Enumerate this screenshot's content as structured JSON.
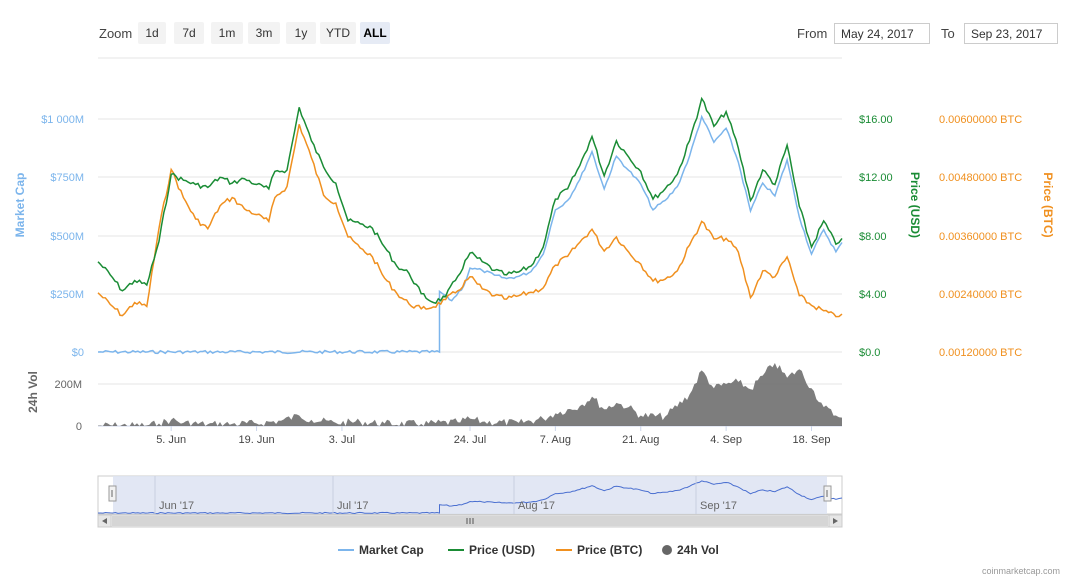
{
  "toolbar": {
    "zoom_label": "Zoom",
    "zoom_buttons": [
      "1d",
      "7d",
      "1m",
      "3m",
      "1y",
      "YTD",
      "ALL"
    ],
    "active_zoom": "ALL",
    "from_label": "From",
    "from_value": "May 24, 2017",
    "to_label": "To",
    "to_value": "Sep 23, 2017"
  },
  "legend": {
    "items": [
      {
        "label": "Market Cap",
        "color": "#7cb5ec"
      },
      {
        "label": "Price (USD)",
        "color": "#1a8c35"
      },
      {
        "label": "Price (BTC)",
        "color": "#f0901f"
      },
      {
        "label": "24h Vol",
        "color": "#666666"
      }
    ]
  },
  "navigator": {
    "labels": [
      "Jun '17",
      "Jul '17",
      "Aug '17",
      "Sep '17"
    ]
  },
  "watermark": "coinmarketcap.com",
  "chart_data": {
    "type": "line",
    "x_start": "2017-05-24",
    "x_end": "2017-09-23",
    "x_tick_labels": [
      "5. Jun",
      "19. Jun",
      "3. Jul",
      "24. Jul",
      "7. Aug",
      "21. Aug",
      "4. Sep",
      "18. Sep"
    ],
    "x_tick_dates": [
      "2017-06-05",
      "2017-06-19",
      "2017-07-03",
      "2017-07-24",
      "2017-08-07",
      "2017-08-21",
      "2017-09-04",
      "2017-09-18"
    ],
    "axes": {
      "market_cap": {
        "label": "Market Cap",
        "ticks": [
          "$0",
          "$250M",
          "$500M",
          "$750M",
          "$1 000M"
        ],
        "range": [
          0,
          1000
        ],
        "unit": "M USD",
        "color": "#7cb5ec"
      },
      "price_usd": {
        "label": "Price (USD)",
        "ticks": [
          "$0.0",
          "$4.00",
          "$8.00",
          "$12.00",
          "$16.00"
        ],
        "range": [
          0,
          16
        ],
        "color": "#1a8c35"
      },
      "price_btc": {
        "label": "Price (BTC)",
        "ticks": [
          "0.00120000 BTC",
          "0.00240000 BTC",
          "0.00360000 BTC",
          "0.00480000 BTC",
          "0.00600000 BTC"
        ],
        "range": [
          0.0012,
          0.006
        ],
        "color": "#f0901f"
      },
      "volume": {
        "label": "24h Vol",
        "ticks": [
          "0",
          "200M"
        ],
        "range": [
          0,
          200
        ],
        "unit": "M USD",
        "color": "#666666"
      }
    },
    "series": [
      {
        "name": "Price (USD)",
        "axis": "price_usd",
        "points": [
          [
            "2017-05-24",
            6.2
          ],
          [
            "2017-05-26",
            5.3
          ],
          [
            "2017-05-28",
            4.2
          ],
          [
            "2017-05-30",
            4.9
          ],
          [
            "2017-06-01",
            4.6
          ],
          [
            "2017-06-03",
            7.6
          ],
          [
            "2017-06-05",
            12.2
          ],
          [
            "2017-06-07",
            11.8
          ],
          [
            "2017-06-09",
            11.5
          ],
          [
            "2017-06-11",
            11.3
          ],
          [
            "2017-06-13",
            12.0
          ],
          [
            "2017-06-15",
            11.6
          ],
          [
            "2017-06-17",
            11.9
          ],
          [
            "2017-06-19",
            11.5
          ],
          [
            "2017-06-21",
            11.2
          ],
          [
            "2017-06-22",
            12.4
          ],
          [
            "2017-06-24",
            12.5
          ],
          [
            "2017-06-26",
            16.8
          ],
          [
            "2017-06-28",
            14.5
          ],
          [
            "2017-06-30",
            12.7
          ],
          [
            "2017-07-02",
            11.6
          ],
          [
            "2017-07-04",
            9.0
          ],
          [
            "2017-07-06",
            8.8
          ],
          [
            "2017-07-08",
            8.5
          ],
          [
            "2017-07-10",
            7.2
          ],
          [
            "2017-07-12",
            5.9
          ],
          [
            "2017-07-14",
            5.4
          ],
          [
            "2017-07-16",
            4.0
          ],
          [
            "2017-07-18",
            3.4
          ],
          [
            "2017-07-20",
            3.8
          ],
          [
            "2017-07-22",
            5.2
          ],
          [
            "2017-07-24",
            6.8
          ],
          [
            "2017-07-26",
            6.2
          ],
          [
            "2017-07-28",
            5.6
          ],
          [
            "2017-07-30",
            5.3
          ],
          [
            "2017-08-01",
            5.5
          ],
          [
            "2017-08-03",
            5.9
          ],
          [
            "2017-08-05",
            7.2
          ],
          [
            "2017-08-07",
            10.5
          ],
          [
            "2017-08-09",
            11.2
          ],
          [
            "2017-08-11",
            12.8
          ],
          [
            "2017-08-13",
            14.8
          ],
          [
            "2017-08-15",
            12.1
          ],
          [
            "2017-08-17",
            14.5
          ],
          [
            "2017-08-19",
            13.4
          ],
          [
            "2017-08-21",
            12.4
          ],
          [
            "2017-08-23",
            10.5
          ],
          [
            "2017-08-25",
            11.2
          ],
          [
            "2017-08-27",
            12.2
          ],
          [
            "2017-08-29",
            14.5
          ],
          [
            "2017-08-31",
            17.4
          ],
          [
            "2017-09-02",
            15.5
          ],
          [
            "2017-09-04",
            16.5
          ],
          [
            "2017-09-06",
            14.0
          ],
          [
            "2017-09-08",
            10.4
          ],
          [
            "2017-09-10",
            12.5
          ],
          [
            "2017-09-12",
            11.5
          ],
          [
            "2017-09-14",
            14.2
          ],
          [
            "2017-09-16",
            10.0
          ],
          [
            "2017-09-18",
            7.2
          ],
          [
            "2017-09-20",
            9.0
          ],
          [
            "2017-09-22",
            7.4
          ],
          [
            "2017-09-23",
            7.8
          ]
        ]
      },
      {
        "name": "Price (BTC)",
        "axis": "price_btc",
        "points": [
          [
            "2017-05-24",
            0.00242
          ],
          [
            "2017-05-26",
            0.00218
          ],
          [
            "2017-05-28",
            0.00195
          ],
          [
            "2017-05-30",
            0.00222
          ],
          [
            "2017-06-01",
            0.00214
          ],
          [
            "2017-06-03",
            0.00375
          ],
          [
            "2017-06-05",
            0.00496
          ],
          [
            "2017-06-07",
            0.00438
          ],
          [
            "2017-06-09",
            0.00394
          ],
          [
            "2017-06-11",
            0.00374
          ],
          [
            "2017-06-13",
            0.00421
          ],
          [
            "2017-06-15",
            0.00438
          ],
          [
            "2017-06-17",
            0.00415
          ],
          [
            "2017-06-19",
            0.00403
          ],
          [
            "2017-06-21",
            0.00389
          ],
          [
            "2017-06-22",
            0.00438
          ],
          [
            "2017-06-24",
            0.00461
          ],
          [
            "2017-06-26",
            0.00589
          ],
          [
            "2017-06-28",
            0.0052
          ],
          [
            "2017-06-30",
            0.00443
          ],
          [
            "2017-07-02",
            0.00427
          ],
          [
            "2017-07-04",
            0.00357
          ],
          [
            "2017-07-06",
            0.00334
          ],
          [
            "2017-07-08",
            0.00316
          ],
          [
            "2017-07-10",
            0.00272
          ],
          [
            "2017-07-12",
            0.00241
          ],
          [
            "2017-07-14",
            0.00219
          ],
          [
            "2017-07-16",
            0.00209
          ],
          [
            "2017-07-18",
            0.00213
          ],
          [
            "2017-07-20",
            0.00228
          ],
          [
            "2017-07-22",
            0.00246
          ],
          [
            "2017-07-24",
            0.00275
          ],
          [
            "2017-07-26",
            0.0025
          ],
          [
            "2017-07-28",
            0.00236
          ],
          [
            "2017-07-30",
            0.00229
          ],
          [
            "2017-08-01",
            0.00236
          ],
          [
            "2017-08-03",
            0.00243
          ],
          [
            "2017-08-05",
            0.00252
          ],
          [
            "2017-08-07",
            0.00299
          ],
          [
            "2017-08-09",
            0.00317
          ],
          [
            "2017-08-11",
            0.00346
          ],
          [
            "2017-08-13",
            0.00373
          ],
          [
            "2017-08-15",
            0.00328
          ],
          [
            "2017-08-17",
            0.00357
          ],
          [
            "2017-08-19",
            0.00326
          ],
          [
            "2017-08-21",
            0.00301
          ],
          [
            "2017-08-23",
            0.00266
          ],
          [
            "2017-08-25",
            0.0027
          ],
          [
            "2017-08-27",
            0.00287
          ],
          [
            "2017-08-29",
            0.0034
          ],
          [
            "2017-08-31",
            0.00389
          ],
          [
            "2017-09-02",
            0.00353
          ],
          [
            "2017-09-04",
            0.00354
          ],
          [
            "2017-09-06",
            0.00326
          ],
          [
            "2017-09-08",
            0.00232
          ],
          [
            "2017-09-10",
            0.00287
          ],
          [
            "2017-09-12",
            0.00275
          ],
          [
            "2017-09-14",
            0.00316
          ],
          [
            "2017-09-16",
            0.00236
          ],
          [
            "2017-09-18",
            0.00216
          ],
          [
            "2017-09-20",
            0.00205
          ],
          [
            "2017-09-22",
            0.00193
          ],
          [
            "2017-09-23",
            0.00198
          ]
        ]
      },
      {
        "name": "Market Cap",
        "axis": "market_cap",
        "points": [
          [
            "2017-05-24",
            0.2
          ],
          [
            "2017-07-19",
            0.2
          ],
          [
            "2017-07-19",
            260
          ],
          [
            "2017-07-21",
            220
          ],
          [
            "2017-07-23",
            285
          ],
          [
            "2017-07-24",
            360
          ],
          [
            "2017-07-26",
            350
          ],
          [
            "2017-07-28",
            330
          ],
          [
            "2017-07-30",
            315
          ],
          [
            "2017-08-01",
            325
          ],
          [
            "2017-08-03",
            345
          ],
          [
            "2017-08-05",
            420
          ],
          [
            "2017-08-07",
            610
          ],
          [
            "2017-08-09",
            650
          ],
          [
            "2017-08-11",
            740
          ],
          [
            "2017-08-13",
            860
          ],
          [
            "2017-08-15",
            700
          ],
          [
            "2017-08-17",
            840
          ],
          [
            "2017-08-19",
            780
          ],
          [
            "2017-08-21",
            720
          ],
          [
            "2017-08-23",
            610
          ],
          [
            "2017-08-25",
            650
          ],
          [
            "2017-08-27",
            710
          ],
          [
            "2017-08-29",
            840
          ],
          [
            "2017-08-31",
            1010
          ],
          [
            "2017-09-02",
            900
          ],
          [
            "2017-09-04",
            960
          ],
          [
            "2017-09-06",
            815
          ],
          [
            "2017-09-08",
            605
          ],
          [
            "2017-09-10",
            725
          ],
          [
            "2017-09-12",
            670
          ],
          [
            "2017-09-14",
            825
          ],
          [
            "2017-09-16",
            580
          ],
          [
            "2017-09-18",
            420
          ],
          [
            "2017-09-20",
            525
          ],
          [
            "2017-09-22",
            430
          ],
          [
            "2017-09-23",
            470
          ]
        ]
      },
      {
        "name": "24h Vol",
        "axis": "volume",
        "type": "area",
        "points": [
          [
            "2017-05-24",
            2
          ],
          [
            "2017-06-01",
            3
          ],
          [
            "2017-06-03",
            12
          ],
          [
            "2017-06-05",
            30
          ],
          [
            "2017-06-07",
            15
          ],
          [
            "2017-06-11",
            8
          ],
          [
            "2017-06-15",
            10
          ],
          [
            "2017-06-19",
            12
          ],
          [
            "2017-06-23",
            25
          ],
          [
            "2017-06-26",
            50
          ],
          [
            "2017-06-28",
            30
          ],
          [
            "2017-07-02",
            15
          ],
          [
            "2017-07-06",
            20
          ],
          [
            "2017-07-10",
            12
          ],
          [
            "2017-07-16",
            10
          ],
          [
            "2017-07-22",
            18
          ],
          [
            "2017-07-24",
            35
          ],
          [
            "2017-07-26",
            20
          ],
          [
            "2017-08-01",
            15
          ],
          [
            "2017-08-05",
            35
          ],
          [
            "2017-08-07",
            60
          ],
          [
            "2017-08-11",
            95
          ],
          [
            "2017-08-13",
            140
          ],
          [
            "2017-08-15",
            80
          ],
          [
            "2017-08-17",
            110
          ],
          [
            "2017-08-19",
            90
          ],
          [
            "2017-08-21",
            50
          ],
          [
            "2017-08-25",
            45
          ],
          [
            "2017-08-29",
            150
          ],
          [
            "2017-08-31",
            265
          ],
          [
            "2017-09-02",
            180
          ],
          [
            "2017-09-04",
            200
          ],
          [
            "2017-09-06",
            210
          ],
          [
            "2017-09-08",
            175
          ],
          [
            "2017-09-10",
            240
          ],
          [
            "2017-09-12",
            300
          ],
          [
            "2017-09-14",
            230
          ],
          [
            "2017-09-16",
            270
          ],
          [
            "2017-09-18",
            180
          ],
          [
            "2017-09-20",
            90
          ],
          [
            "2017-09-22",
            50
          ],
          [
            "2017-09-23",
            40
          ]
        ]
      }
    ]
  }
}
